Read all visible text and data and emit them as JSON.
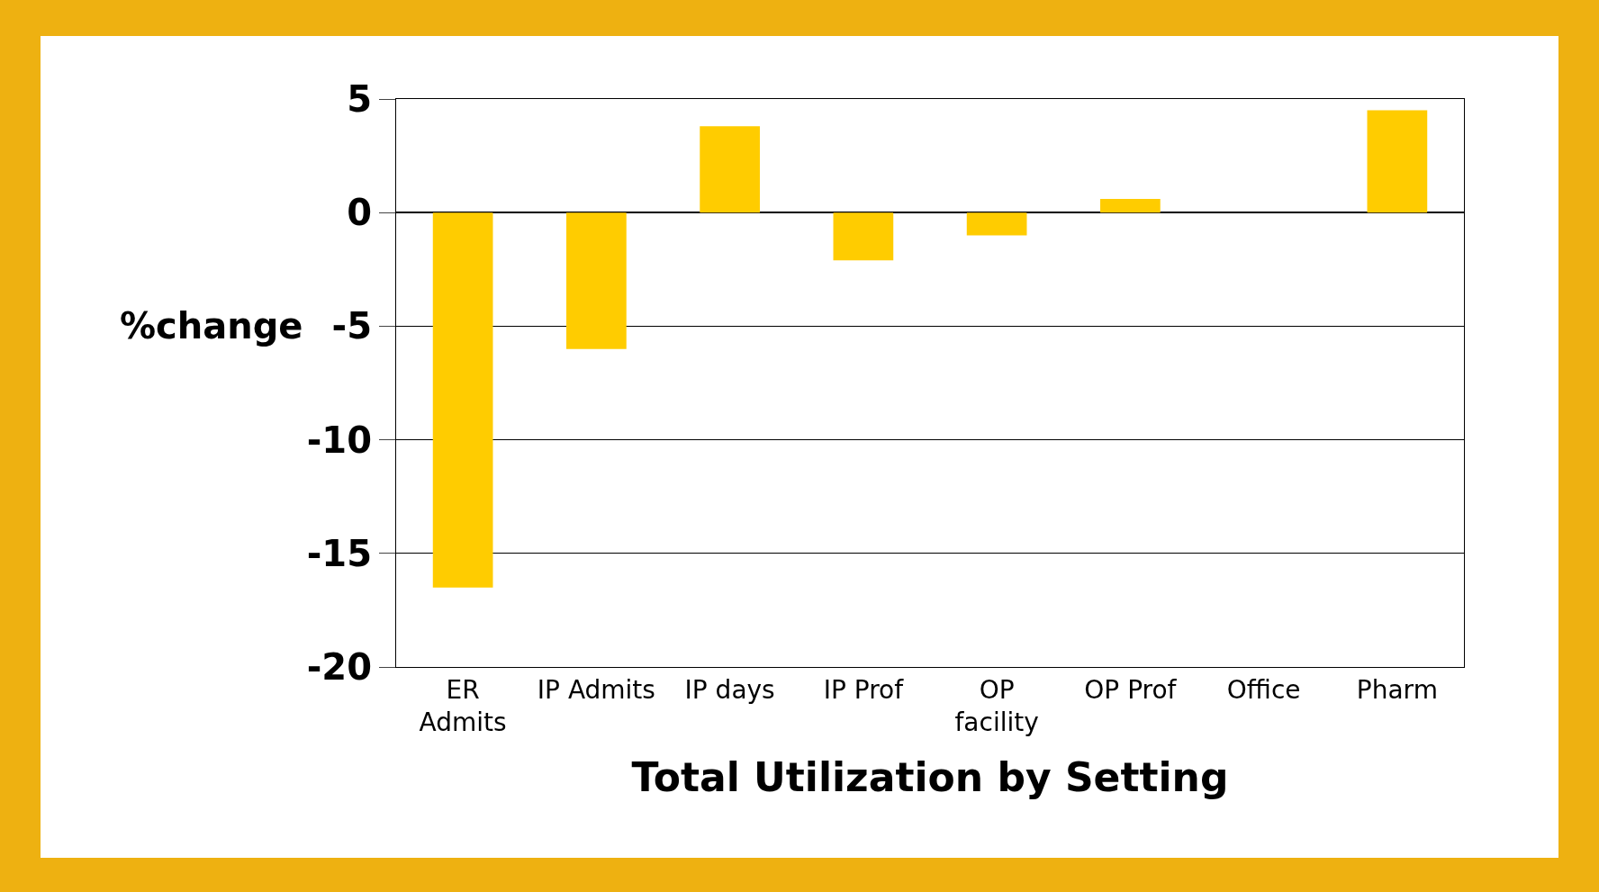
{
  "chart_data": {
    "type": "bar",
    "xlabel": "Total Utilization by Setting",
    "ylabel": "%change",
    "categories": [
      "ER\nAdmits",
      "IP Admits",
      "IP days",
      "IP Prof",
      "OP\nfacility",
      "OP Prof",
      "Office",
      "Pharm"
    ],
    "values": [
      -16.5,
      -6.0,
      3.8,
      -2.1,
      -1.0,
      0.6,
      0,
      4.5
    ],
    "color": "#ffcc00",
    "ylim": [
      -20,
      5
    ],
    "yticks": [
      -20,
      -15,
      -10,
      -5,
      0,
      5
    ],
    "grid": "y",
    "legend": false
  }
}
